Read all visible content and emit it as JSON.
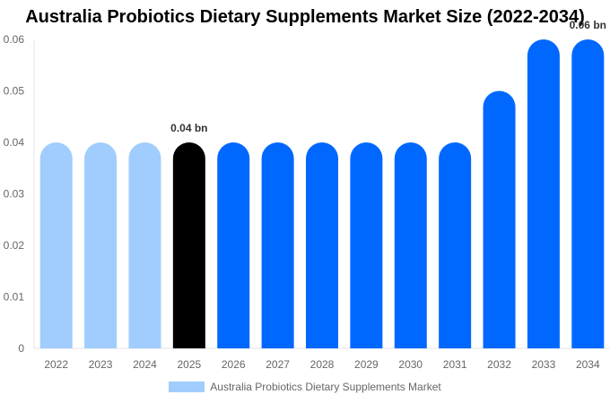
{
  "chart_data": {
    "type": "bar",
    "title": "Australia Probiotics Dietary Supplements Market Size (2022-2034)",
    "categories": [
      "2022",
      "2023",
      "2024",
      "2025",
      "2026",
      "2027",
      "2028",
      "2029",
      "2030",
      "2031",
      "2032",
      "2033",
      "2034"
    ],
    "series": [
      {
        "name": "Australia Probiotics Dietary Supplements Market",
        "values": [
          0.04,
          0.04,
          0.04,
          0.04,
          0.04,
          0.04,
          0.04,
          0.04,
          0.04,
          0.04,
          0.05,
          0.06,
          0.06
        ]
      }
    ],
    "xlabel": "",
    "ylabel": "",
    "ylim": [
      0,
      0.06
    ],
    "yticks": [
      "0",
      "0.01",
      "0.02",
      "0.03",
      "0.04",
      "0.05",
      "0.06"
    ],
    "data_labels": [
      {
        "index": 3,
        "text": "0.04 bn"
      },
      {
        "index": 12,
        "text": "0.06 bn"
      }
    ],
    "bar_colors": [
      "#a0cdfd",
      "#a0cdfd",
      "#a0cdfd",
      "#000000",
      "#0068fe",
      "#0068fe",
      "#0068fe",
      "#0068fe",
      "#0068fe",
      "#0068fe",
      "#0068fe",
      "#0068fe",
      "#0068fe"
    ],
    "legend_color": "#a0cdfd",
    "legend_position": "bottom",
    "grid": false
  }
}
